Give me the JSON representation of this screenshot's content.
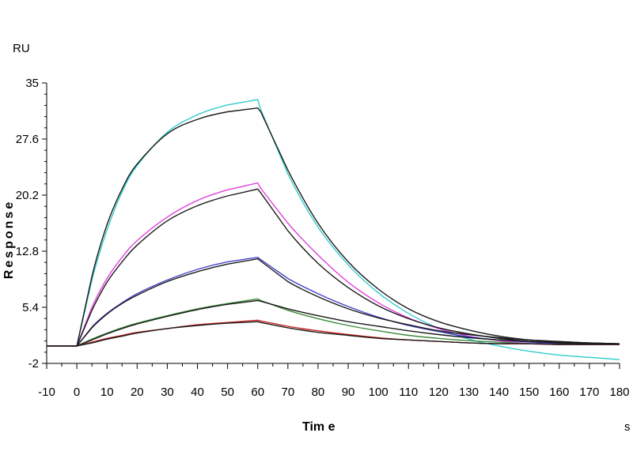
{
  "chart_data": {
    "type": "line",
    "title": "",
    "xlabel": "Tim e",
    "ylabel": "Response",
    "x_unit": "s",
    "y_unit": "RU",
    "xlim": [
      -10,
      180
    ],
    "ylim": [
      -2,
      35
    ],
    "x_ticks": [
      "-10",
      "0",
      "10",
      "20",
      "30",
      "40",
      "50",
      "60",
      "70",
      "80",
      "90",
      "100",
      "110",
      "120",
      "130",
      "140",
      "150",
      "160",
      "170",
      "180"
    ],
    "y_ticks": [
      "35",
      "27.6",
      "20.2",
      "12.8",
      "5.4",
      "-2"
    ],
    "grid": false,
    "legend": "none",
    "series": [
      {
        "color": "#33cccc",
        "x": [
          -10,
          0,
          5,
          10,
          15,
          20,
          30,
          40,
          50,
          60,
          61,
          70,
          80,
          90,
          100,
          110,
          120,
          130,
          140,
          150,
          160,
          170,
          180
        ],
        "y": [
          0.3,
          0.3,
          9.0,
          15.6,
          20.6,
          24.1,
          28.5,
          30.8,
          32.1,
          32.8,
          31.5,
          23.0,
          16.0,
          11.0,
          7.3,
          4.6,
          2.6,
          1.2,
          0.3,
          -0.4,
          -0.9,
          -1.2,
          -1.5
        ]
      },
      {
        "color": "#1a1a1a",
        "x": [
          -10,
          0,
          5,
          10,
          15,
          20,
          30,
          40,
          50,
          60,
          61,
          70,
          80,
          90,
          100,
          110,
          120,
          130,
          140,
          150,
          160,
          170,
          180
        ],
        "y": [
          0.3,
          0.3,
          9.5,
          16.3,
          21.0,
          24.3,
          28.3,
          30.2,
          31.2,
          31.7,
          31.2,
          23.5,
          16.5,
          11.4,
          7.8,
          5.2,
          3.5,
          2.4,
          1.6,
          1.1,
          0.8,
          0.7,
          0.6
        ]
      },
      {
        "color": "#e040e0",
        "x": [
          -10,
          0,
          5,
          10,
          15,
          20,
          30,
          40,
          50,
          60,
          61,
          70,
          80,
          90,
          100,
          110,
          120,
          130,
          140,
          150,
          160,
          170,
          180
        ],
        "y": [
          0.3,
          0.3,
          5.4,
          9.2,
          12.0,
          14.2,
          17.3,
          19.5,
          20.9,
          21.8,
          21.1,
          16.5,
          12.3,
          8.7,
          6.0,
          4.0,
          2.6,
          1.6,
          1.0,
          0.6,
          0.5,
          0.5,
          0.5
        ]
      },
      {
        "color": "#1a1a1a",
        "x": [
          -10,
          0,
          5,
          10,
          15,
          20,
          30,
          40,
          50,
          60,
          61,
          70,
          80,
          90,
          100,
          110,
          120,
          130,
          140,
          150,
          160,
          170,
          180
        ],
        "y": [
          0.3,
          0.3,
          5.0,
          8.7,
          11.4,
          13.6,
          16.8,
          18.8,
          20.1,
          21.0,
          20.5,
          15.5,
          11.2,
          8.0,
          5.6,
          3.9,
          2.7,
          1.9,
          1.3,
          0.9,
          0.7,
          0.6,
          0.5
        ]
      },
      {
        "color": "#4444cc",
        "x": [
          -10,
          0,
          5,
          10,
          15,
          20,
          30,
          40,
          50,
          60,
          61,
          70,
          80,
          90,
          100,
          110,
          120,
          130,
          140,
          150,
          160,
          170,
          180
        ],
        "y": [
          0.3,
          0.3,
          2.8,
          4.6,
          6.0,
          7.2,
          9.0,
          10.4,
          11.4,
          12.0,
          11.7,
          9.2,
          7.2,
          5.5,
          4.1,
          3.0,
          2.2,
          1.5,
          1.1,
          0.8,
          0.6,
          0.5,
          0.5
        ]
      },
      {
        "color": "#1a1a1a",
        "x": [
          -10,
          0,
          5,
          10,
          15,
          20,
          30,
          40,
          50,
          60,
          61,
          70,
          80,
          90,
          100,
          110,
          120,
          130,
          140,
          150,
          160,
          170,
          180
        ],
        "y": [
          0.3,
          0.3,
          2.7,
          4.5,
          5.9,
          7.0,
          8.8,
          10.1,
          11.1,
          11.8,
          11.5,
          8.8,
          6.8,
          5.2,
          4.0,
          3.1,
          2.3,
          1.8,
          1.4,
          1.1,
          0.9,
          0.7,
          0.6
        ]
      },
      {
        "color": "#3a8a3a",
        "x": [
          -10,
          0,
          5,
          10,
          15,
          20,
          30,
          40,
          50,
          60,
          61,
          70,
          80,
          90,
          100,
          110,
          120,
          130,
          140,
          150,
          160,
          170,
          180
        ],
        "y": [
          0.3,
          0.3,
          1.2,
          2.0,
          2.7,
          3.3,
          4.3,
          5.2,
          5.9,
          6.5,
          6.3,
          5.0,
          3.9,
          3.0,
          2.3,
          1.7,
          1.3,
          1.0,
          0.8,
          0.6,
          0.5,
          0.5,
          0.5
        ]
      },
      {
        "color": "#1a1a1a",
        "x": [
          -10,
          0,
          5,
          10,
          15,
          20,
          30,
          40,
          50,
          60,
          61,
          70,
          80,
          90,
          100,
          110,
          120,
          130,
          140,
          150,
          160,
          170,
          180
        ],
        "y": [
          0.3,
          0.3,
          1.1,
          1.9,
          2.6,
          3.2,
          4.2,
          5.1,
          5.8,
          6.3,
          6.2,
          5.2,
          4.3,
          3.5,
          2.9,
          2.3,
          1.8,
          1.4,
          1.1,
          0.9,
          0.7,
          0.6,
          0.5
        ]
      },
      {
        "color": "#cc2222",
        "x": [
          -10,
          0,
          5,
          10,
          15,
          20,
          30,
          40,
          50,
          60,
          61,
          70,
          80,
          90,
          100,
          110,
          120,
          130,
          140,
          150,
          160,
          170,
          180
        ],
        "y": [
          0.3,
          0.3,
          0.8,
          1.3,
          1.7,
          2.1,
          2.6,
          3.1,
          3.4,
          3.7,
          3.6,
          2.9,
          2.3,
          1.8,
          1.4,
          1.1,
          0.9,
          0.7,
          0.6,
          0.6,
          0.5,
          0.5,
          0.5
        ]
      },
      {
        "color": "#1a1a1a",
        "x": [
          -10,
          0,
          5,
          10,
          15,
          20,
          30,
          40,
          50,
          60,
          61,
          70,
          80,
          90,
          100,
          110,
          120,
          130,
          140,
          150,
          160,
          170,
          180
        ],
        "y": [
          0.3,
          0.3,
          0.7,
          1.2,
          1.6,
          2.0,
          2.6,
          3.0,
          3.3,
          3.5,
          3.4,
          2.7,
          2.1,
          1.7,
          1.3,
          1.1,
          0.9,
          0.7,
          0.6,
          0.6,
          0.5,
          0.5,
          0.5
        ]
      }
    ]
  }
}
